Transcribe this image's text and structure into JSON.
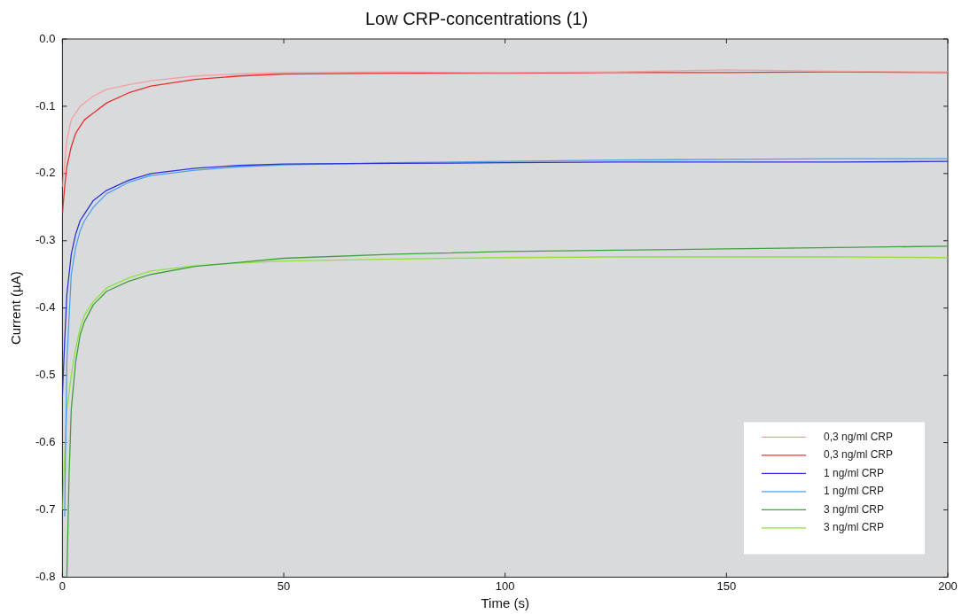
{
  "chart_data": {
    "type": "line",
    "title": "Low CRP-concentrations (1)",
    "xlabel": "Time (s)",
    "ylabel": "Current (µA)",
    "xlim": [
      0,
      200
    ],
    "xticks": [
      0,
      50,
      100,
      150,
      200
    ],
    "ylim": [
      -0.8,
      0
    ],
    "yticks": [
      {
        "value": -0.8,
        "label": "-0.8"
      },
      {
        "value": -0.7,
        "label": "-0.7"
      },
      {
        "value": -0.6,
        "label": "-0.6"
      },
      {
        "value": -0.5,
        "label": "-0.5"
      },
      {
        "value": -0.4,
        "label": "-0.4"
      },
      {
        "value": -0.3,
        "label": "-0.3"
      },
      {
        "value": -0.2,
        "label": "-0.2"
      },
      {
        "value": -0.1,
        "label": "-0.1"
      },
      {
        "value": 0,
        "label": "0.0"
      }
    ],
    "grid": false,
    "legend": "bottom right",
    "marker": "none",
    "line_style": "solid",
    "series": [
      {
        "name": "0,3 ng/ml CRP",
        "color": "#f4a0a0",
        "x": [
          0,
          1,
          2,
          4,
          7,
          10,
          15,
          20,
          30,
          40,
          50,
          75,
          100,
          125,
          150,
          175,
          200
        ],
        "values": [
          -0.22,
          -0.15,
          -0.12,
          -0.1,
          -0.085,
          -0.075,
          -0.068,
          -0.062,
          -0.055,
          -0.052,
          -0.05,
          -0.049,
          -0.05,
          -0.049,
          -0.046,
          -0.048,
          -0.049
        ]
      },
      {
        "name": "0,3 ng/ml CRP",
        "color": "#e83030",
        "x": [
          0,
          0.5,
          1,
          2,
          3,
          4,
          5,
          7,
          10,
          15,
          20,
          30,
          40,
          50,
          75,
          100,
          125,
          150,
          175,
          200
        ],
        "values": [
          -0.26,
          -0.22,
          -0.19,
          -0.16,
          -0.14,
          -0.13,
          -0.12,
          -0.11,
          -0.095,
          -0.08,
          -0.07,
          -0.06,
          -0.055,
          -0.052,
          -0.051,
          -0.051,
          -0.05,
          -0.05,
          -0.049,
          -0.05
        ]
      },
      {
        "name": "1 ng/ml CRP",
        "color": "#3030d8",
        "x": [
          0,
          0.5,
          1,
          2,
          3,
          4,
          5,
          7,
          10,
          15,
          20,
          30,
          40,
          50,
          75,
          100,
          125,
          150,
          175,
          200
        ],
        "values": [
          -0.53,
          -0.45,
          -0.38,
          -0.32,
          -0.29,
          -0.27,
          -0.26,
          -0.24,
          -0.225,
          -0.21,
          -0.2,
          -0.192,
          -0.188,
          -0.186,
          -0.185,
          -0.184,
          -0.183,
          -0.183,
          -0.183,
          -0.182
        ]
      },
      {
        "name": "1 ng/ml CRP",
        "color": "#50a0f0",
        "x": [
          0.5,
          1,
          2,
          3,
          4,
          5,
          7,
          10,
          15,
          20,
          30,
          40,
          50,
          75,
          100,
          125,
          150,
          175,
          200
        ],
        "values": [
          -0.71,
          -0.48,
          -0.35,
          -0.31,
          -0.285,
          -0.27,
          -0.25,
          -0.23,
          -0.213,
          -0.203,
          -0.195,
          -0.19,
          -0.187,
          -0.184,
          -0.182,
          -0.18,
          -0.179,
          -0.178,
          -0.178
        ]
      },
      {
        "name": "3 ng/ml CRP",
        "color": "#40a040",
        "x": [
          1,
          1.5,
          2,
          3,
          4,
          5,
          7,
          10,
          15,
          20,
          30,
          40,
          50,
          75,
          100,
          125,
          150,
          175,
          200
        ],
        "values": [
          -0.8,
          -0.65,
          -0.55,
          -0.48,
          -0.44,
          -0.42,
          -0.395,
          -0.375,
          -0.36,
          -0.35,
          -0.338,
          -0.332,
          -0.326,
          -0.32,
          -0.316,
          -0.314,
          -0.312,
          -0.31,
          -0.308
        ]
      },
      {
        "name": "3 ng/ml CRP",
        "color": "#90e040",
        "x": [
          0,
          0.5,
          1,
          2,
          3,
          4,
          5,
          7,
          10,
          15,
          20,
          30,
          40,
          50,
          75,
          100,
          125,
          150,
          175,
          200
        ],
        "values": [
          -0.7,
          -0.62,
          -0.55,
          -0.5,
          -0.46,
          -0.43,
          -0.41,
          -0.39,
          -0.37,
          -0.355,
          -0.345,
          -0.337,
          -0.333,
          -0.33,
          -0.327,
          -0.325,
          -0.324,
          -0.324,
          -0.324,
          -0.325
        ]
      }
    ]
  }
}
